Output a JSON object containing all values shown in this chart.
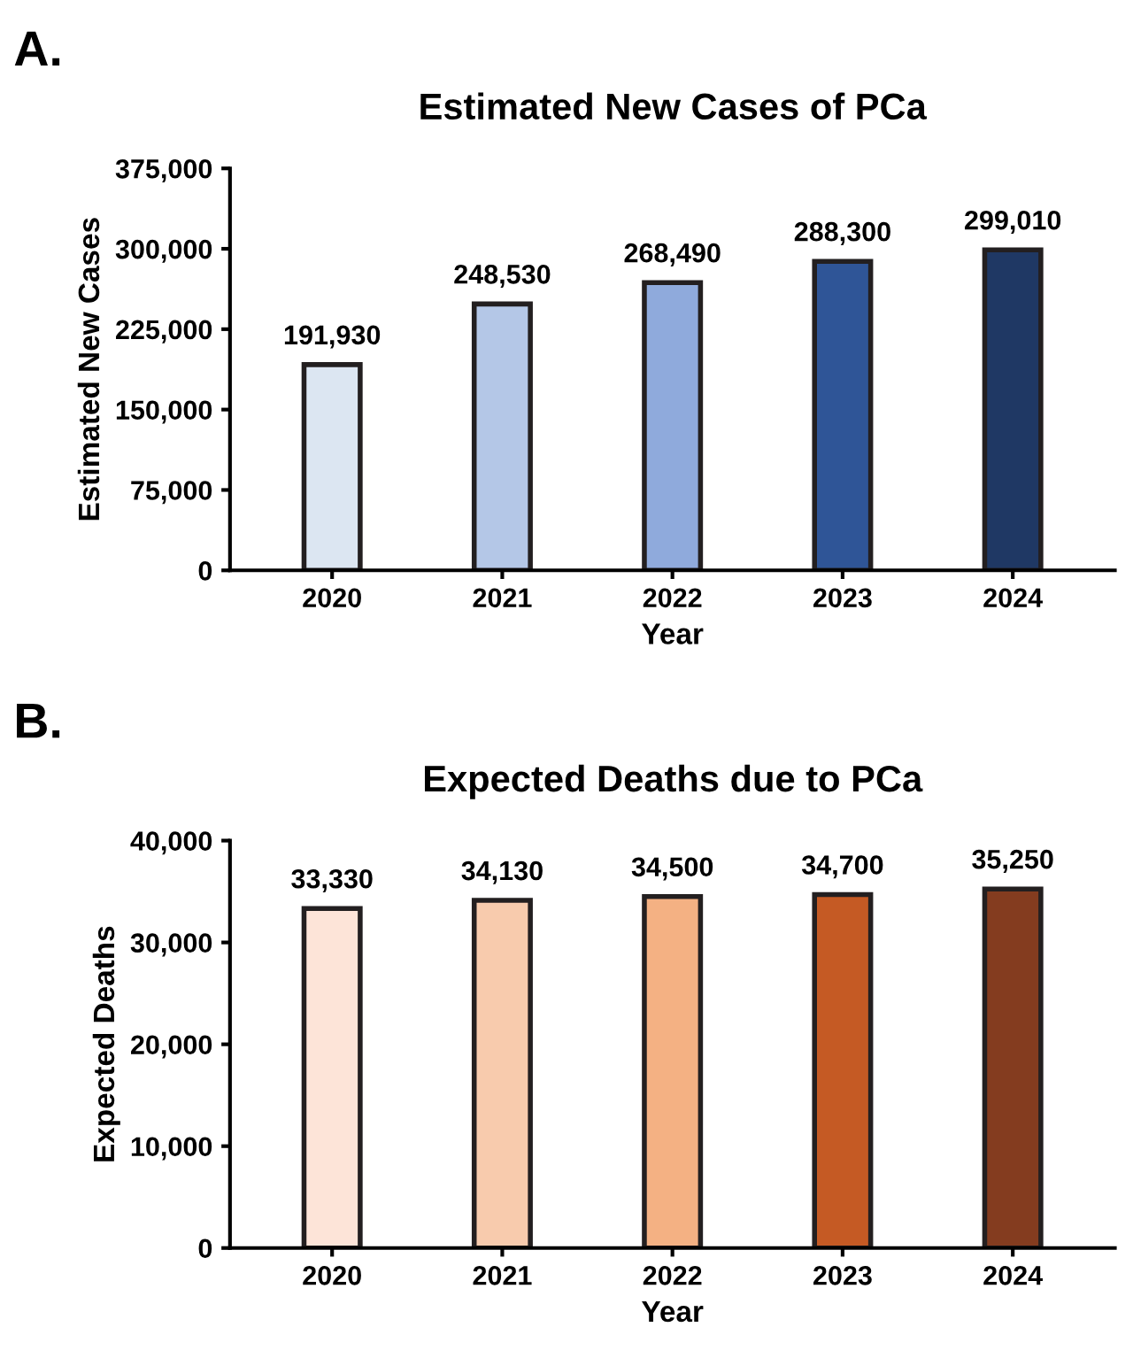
{
  "chart_data": [
    {
      "type": "bar",
      "title": "Estimated New Cases of PCa",
      "xlabel": "Year",
      "ylabel": "Estimated New Cases",
      "annotations": [
        "A."
      ],
      "categories": [
        "2020",
        "2021",
        "2022",
        "2023",
        "2024"
      ],
      "values": [
        191930,
        248530,
        268490,
        288300,
        299010
      ],
      "colors": [
        "#dce6f2",
        "#b4c7e7",
        "#8faadc",
        "#2f5597",
        "#1f3864"
      ],
      "ylim": [
        0,
        375000
      ],
      "yticks": [
        {
          "value": 0,
          "label": "0"
        },
        {
          "value": 75000,
          "label": "75,000"
        },
        {
          "value": 150000,
          "label": "150,000"
        },
        {
          "value": 225000,
          "label": "225,000"
        },
        {
          "value": 300000,
          "label": "300,000"
        },
        {
          "value": 375000,
          "label": "375,000"
        }
      ],
      "value_labels": [
        "191,930",
        "248,530",
        "268,490",
        "288,300",
        "299,010"
      ],
      "grid": false,
      "legend": false
    },
    {
      "type": "bar",
      "title": "Expected Deaths due to PCa",
      "xlabel": "Year",
      "ylabel": "Expected Deaths",
      "annotations": [
        "B."
      ],
      "categories": [
        "2020",
        "2021",
        "2022",
        "2023",
        "2024"
      ],
      "values": [
        33330,
        34130,
        34500,
        34700,
        35250
      ],
      "colors": [
        "#fde4d8",
        "#f8cbad",
        "#f4b183",
        "#c55a24",
        "#843c1f"
      ],
      "ylim": [
        0,
        40000
      ],
      "yticks": [
        {
          "value": 0,
          "label": "0"
        },
        {
          "value": 10000,
          "label": "10,000"
        },
        {
          "value": 20000,
          "label": "20,000"
        },
        {
          "value": 30000,
          "label": "30,000"
        },
        {
          "value": 40000,
          "label": "40,000"
        }
      ],
      "value_labels": [
        "33,330",
        "34,130",
        "34,500",
        "34,700",
        "35,250"
      ],
      "grid": false,
      "legend": false
    }
  ]
}
